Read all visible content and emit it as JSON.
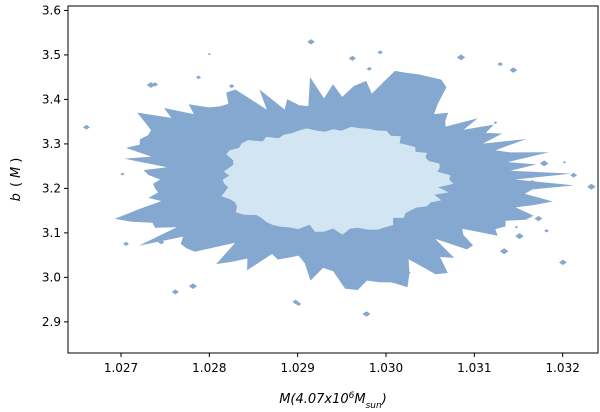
{
  "chart_data": {
    "type": "contour",
    "xlabel_parts": [
      "M(4.07x10",
      "6",
      "M",
      "sun",
      ")"
    ],
    "ylabel_parts": [
      "b",
      "(",
      "M",
      ")"
    ],
    "xlim": [
      1.0264,
      1.0324
    ],
    "ylim": [
      2.83,
      3.61
    ],
    "xticks": [
      1.027,
      1.028,
      1.029,
      1.03,
      1.031,
      1.032
    ],
    "xtick_labels": [
      "1.027",
      "1.028",
      "1.029",
      "1.030",
      "1.031",
      "1.032"
    ],
    "yticks": [
      2.9,
      3.0,
      3.1,
      3.2,
      3.3,
      3.4,
      3.5,
      3.6
    ],
    "ytick_labels": [
      "2.9",
      "3.0",
      "3.1",
      "3.2",
      "3.3",
      "3.4",
      "3.5",
      "3.6"
    ],
    "center": {
      "x": 1.0294,
      "y": 3.22
    },
    "levels": [
      {
        "level": "outer",
        "color": "#85a8d0",
        "x_halfwidth": 0.00225,
        "y_halfwidth": 0.21
      },
      {
        "level": "inner",
        "color": "#d2e5f2",
        "x_halfwidth": 0.00125,
        "y_halfwidth": 0.115
      }
    ],
    "grid": false
  }
}
